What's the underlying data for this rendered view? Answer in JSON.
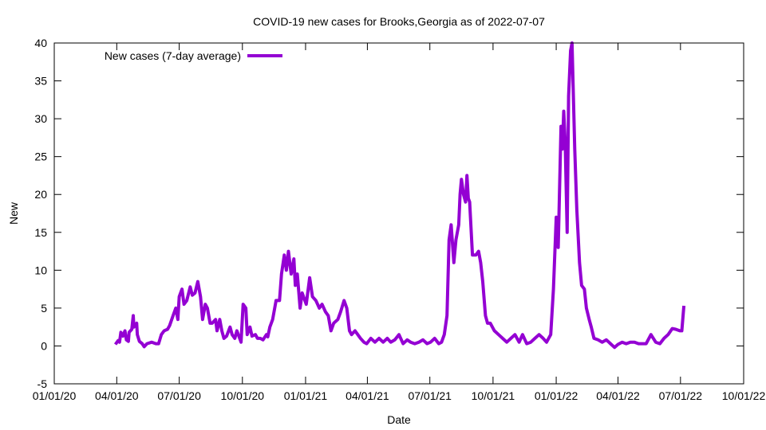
{
  "chart_data": {
    "type": "line",
    "title": "COVID-19 new cases for Brooks,Georgia as of 2022-07-07",
    "xlabel": "Date",
    "ylabel": "New",
    "ylim": [
      -5,
      40
    ],
    "yticks": [
      -5,
      0,
      5,
      10,
      15,
      20,
      25,
      30,
      35,
      40
    ],
    "xlim_days_since_2020_01_01": [
      0,
      1004
    ],
    "xticks": [
      {
        "day": 0,
        "label": "01/01/20"
      },
      {
        "day": 91,
        "label": "04/01/20"
      },
      {
        "day": 182,
        "label": "07/01/20"
      },
      {
        "day": 274,
        "label": "10/01/20"
      },
      {
        "day": 366,
        "label": "01/01/21"
      },
      {
        "day": 456,
        "label": "04/01/21"
      },
      {
        "day": 547,
        "label": "07/01/21"
      },
      {
        "day": 639,
        "label": "10/01/21"
      },
      {
        "day": 731,
        "label": "01/01/22"
      },
      {
        "day": 821,
        "label": "04/01/22"
      },
      {
        "day": 912,
        "label": "07/01/22"
      },
      {
        "day": 1004,
        "label": "10/01/22"
      }
    ],
    "grid": false,
    "legend_position": "top-left",
    "series": [
      {
        "name": "New cases (7-day average)",
        "color": "#9400d3",
        "x_days_since_2020_01_01": [
          89,
          93,
          95,
          97,
          100,
          103,
          105,
          108,
          109,
          113,
          115,
          116,
          120,
          121,
          124,
          128,
          131,
          135,
          142,
          148,
          152,
          156,
          160,
          165,
          168,
          173,
          177,
          180,
          182,
          186,
          189,
          193,
          198,
          201,
          205,
          209,
          213,
          216,
          220,
          223,
          227,
          230,
          235,
          237,
          241,
          244,
          247,
          251,
          256,
          259,
          263,
          266,
          270,
          272,
          275,
          279,
          281,
          285,
          288,
          293,
          296,
          300,
          304,
          309,
          311,
          314,
          318,
          323,
          328,
          331,
          335,
          338,
          341,
          345,
          349,
          351,
          354,
          358,
          361,
          367,
          372,
          376,
          381,
          386,
          390,
          395,
          399,
          403,
          407,
          413,
          417,
          422,
          426,
          430,
          433,
          438,
          442,
          446,
          451,
          455,
          461,
          467,
          473,
          479,
          485,
          490,
          496,
          502,
          508,
          514,
          519,
          525,
          531,
          537,
          543,
          548,
          554,
          560,
          564,
          568,
          572,
          575,
          578,
          582,
          585,
          589,
          591,
          593,
          596,
          599,
          601,
          603,
          605,
          609,
          614,
          618,
          621,
          624,
          628,
          631,
          635,
          641,
          647,
          653,
          659,
          665,
          671,
          677,
          682,
          688,
          694,
          700,
          706,
          712,
          717,
          723,
          727,
          731,
          734,
          738,
          740,
          742,
          744,
          747,
          749,
          752,
          754,
          758,
          761,
          765,
          768,
          772,
          775,
          779,
          782,
          786,
          792,
          798,
          804,
          810,
          816,
          821,
          827,
          833,
          839,
          845,
          851,
          862,
          869,
          876,
          882,
          888,
          894,
          900,
          905,
          911,
          914,
          917
        ],
        "y": [
          0.2,
          0.7,
          0.5,
          1.8,
          1.3,
          2.0,
          0.8,
          0.6,
          1.8,
          2.2,
          4.0,
          2.5,
          3.0,
          1.5,
          0.6,
          0.3,
          -0.1,
          0.3,
          0.5,
          0.3,
          0.3,
          1.5,
          2.0,
          2.2,
          2.7,
          4.0,
          5.0,
          3.5,
          6.5,
          7.5,
          5.5,
          6.0,
          7.8,
          6.7,
          7.0,
          8.5,
          6.5,
          3.5,
          5.5,
          5.0,
          3.0,
          3.0,
          3.5,
          2.0,
          3.5,
          2.0,
          1.0,
          1.3,
          2.5,
          1.5,
          1.0,
          2.0,
          1.0,
          0.5,
          5.5,
          5.0,
          1.5,
          2.5,
          1.3,
          1.5,
          1.0,
          1.0,
          0.8,
          1.5,
          1.2,
          2.5,
          3.5,
          6.0,
          6.0,
          9.5,
          12.0,
          10.0,
          12.5,
          9.5,
          11.5,
          8.0,
          9.5,
          5.0,
          7.0,
          5.5,
          9.0,
          6.5,
          6.0,
          5.0,
          5.5,
          4.5,
          4.0,
          2.0,
          3.0,
          3.5,
          4.5,
          6.0,
          5.0,
          2.0,
          1.5,
          2.0,
          1.5,
          1.0,
          0.5,
          0.3,
          1.0,
          0.5,
          1.0,
          0.5,
          1.0,
          0.5,
          0.8,
          1.5,
          0.3,
          0.8,
          0.5,
          0.3,
          0.5,
          0.8,
          0.3,
          0.5,
          1.0,
          0.3,
          0.5,
          1.5,
          4.0,
          14.0,
          16.0,
          11.0,
          14.0,
          16.0,
          20.0,
          22.0,
          20.0,
          19.0,
          22.5,
          19.5,
          19.0,
          12.0,
          12.0,
          12.5,
          11.0,
          8.5,
          4.0,
          3.0,
          3.0,
          2.0,
          1.5,
          1.0,
          0.5,
          1.0,
          1.5,
          0.5,
          1.5,
          0.3,
          0.5,
          1.0,
          1.5,
          1.0,
          0.5,
          1.5,
          7.5,
          17.0,
          13.0,
          29.0,
          26.0,
          31.0,
          27.0,
          15.0,
          33.0,
          39.0,
          40.0,
          26.0,
          18.0,
          11.0,
          8.0,
          7.5,
          5.0,
          3.5,
          2.5,
          1.0,
          0.8,
          0.5,
          0.8,
          0.3,
          -0.2,
          0.2,
          0.5,
          0.3,
          0.5,
          0.5,
          0.3,
          0.3,
          1.5,
          0.5,
          0.3,
          1.0,
          1.5,
          2.3,
          2.2,
          2.0,
          2.0,
          5.3
        ]
      }
    ]
  }
}
